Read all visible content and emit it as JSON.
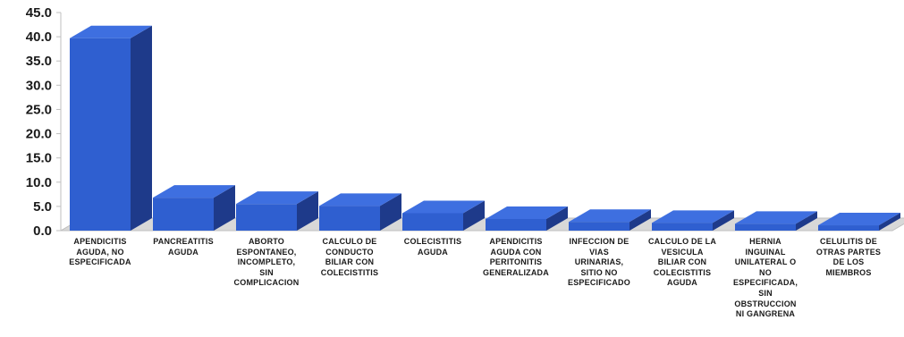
{
  "chart_data": {
    "type": "bar",
    "style": "3d-column",
    "categories": [
      [
        "APENDICITIS",
        "AGUDA, NO",
        "ESPECIFICADA"
      ],
      [
        "PANCREATITIS",
        "AGUDA"
      ],
      [
        "ABORTO",
        "ESPONTANEO,",
        "INCOMPLETO,",
        "SIN",
        "COMPLICACION"
      ],
      [
        "CALCULO DE",
        "CONDUCTO",
        "BILIAR CON",
        "COLECISTITIS"
      ],
      [
        "COLECISTITIS",
        "AGUDA"
      ],
      [
        "APENDICITIS",
        "AGUDA CON",
        "PERITONITIS",
        "GENERALIZADA"
      ],
      [
        "INFECCION DE",
        "VIAS",
        "URINARIAS,",
        "SITIO NO",
        "ESPECIFICADO"
      ],
      [
        "CALCULO DE LA",
        "VESICULA",
        "BILIAR CON",
        "COLECISTITIS",
        "AGUDA"
      ],
      [
        "HERNIA",
        "INGUINAL",
        "UNILATERAL O",
        "NO",
        "ESPECIFICADA,",
        "SIN",
        "OBSTRUCCION",
        "NI GANGRENA"
      ],
      [
        "CELULITIS DE",
        "OTRAS PARTES",
        "DE LOS",
        "MIEMBROS"
      ]
    ],
    "values": [
      39.7,
      6.8,
      5.5,
      5.1,
      3.6,
      2.4,
      1.8,
      1.6,
      1.4,
      1.1
    ],
    "yticks": [
      "0.0",
      "5.0",
      "10.0",
      "15.0",
      "20.0",
      "25.0",
      "30.0",
      "35.0",
      "40.0",
      "45.0"
    ],
    "ylim": [
      0,
      45
    ],
    "title": "",
    "xlabel": "",
    "ylabel": "",
    "grid": false,
    "legend": "none",
    "colors": {
      "bar_front": "#2f5fd0",
      "bar_side": "#1e3a8a",
      "bar_top": "#3e6fe0",
      "floor": "#d8d8d8",
      "axis": "#bfbfbf"
    }
  }
}
